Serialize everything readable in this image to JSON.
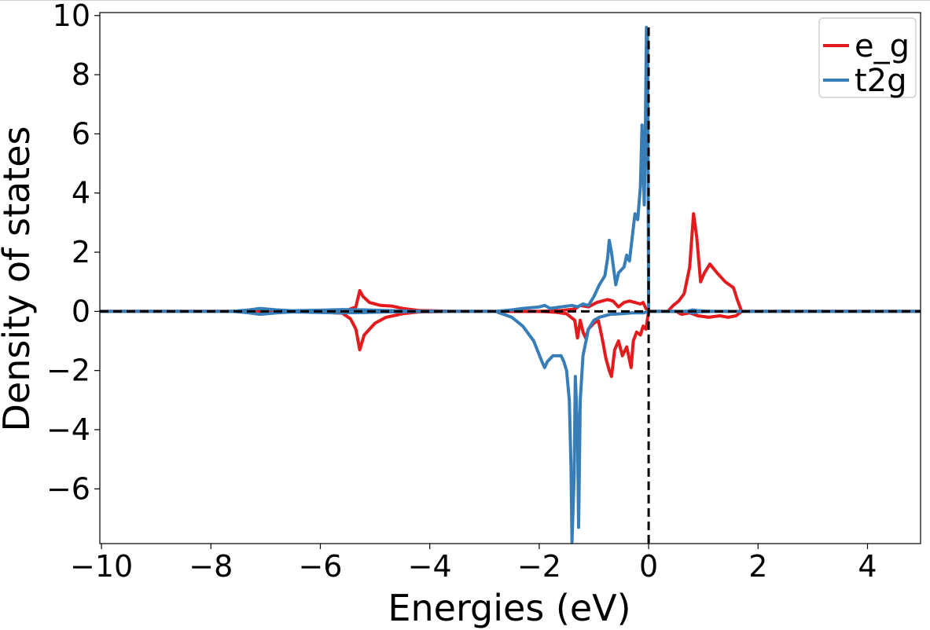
{
  "chart_data": {
    "type": "line",
    "xlabel": "Energies (eV)",
    "ylabel": "Density of states",
    "xlim": [
      -10.03,
      4.97
    ],
    "ylim": [
      -7.85,
      10.1
    ],
    "xticks": [
      -10,
      -8,
      -6,
      -4,
      -2,
      0,
      2,
      4
    ],
    "yticks": [
      -6,
      -4,
      -2,
      0,
      2,
      4,
      6,
      8,
      10
    ],
    "grid": false,
    "legend": "top-right",
    "fermi_level": 0,
    "series": [
      {
        "name": "e_g",
        "color": "#e41a1c",
        "up": [
          [
            -10.05,
            0
          ],
          [
            -7.6,
            0
          ],
          [
            -7.2,
            0.03
          ],
          [
            -7.0,
            0.02
          ],
          [
            -6.5,
            0
          ],
          [
            -6,
            0.02
          ],
          [
            -5.5,
            0.05
          ],
          [
            -5.35,
            0.15
          ],
          [
            -5.28,
            0.7
          ],
          [
            -5.22,
            0.5
          ],
          [
            -5.1,
            0.3
          ],
          [
            -4.9,
            0.2
          ],
          [
            -4.7,
            0.18
          ],
          [
            -4.5,
            0.1
          ],
          [
            -4.2,
            0.03
          ],
          [
            -3.5,
            0
          ],
          [
            -3.0,
            0
          ],
          [
            -2.5,
            0
          ],
          [
            -2.0,
            0
          ],
          [
            -1.6,
            0.03
          ],
          [
            -1.35,
            0.08
          ],
          [
            -1.25,
            0.2
          ],
          [
            -1.1,
            0.15
          ],
          [
            -0.95,
            0.3
          ],
          [
            -0.85,
            0.35
          ],
          [
            -0.75,
            0.4
          ],
          [
            -0.65,
            0.35
          ],
          [
            -0.55,
            0.15
          ],
          [
            -0.45,
            0.3
          ],
          [
            -0.35,
            0.35
          ],
          [
            -0.25,
            0.3
          ],
          [
            -0.15,
            0.25
          ],
          [
            -0.1,
            0.3
          ],
          [
            -0.05,
            0.1
          ],
          [
            0.0,
            0.0
          ],
          [
            0.35,
            0.0
          ],
          [
            0.45,
            0.2
          ],
          [
            0.55,
            0.35
          ],
          [
            0.65,
            0.6
          ],
          [
            0.75,
            1.5
          ],
          [
            0.82,
            3.3
          ],
          [
            0.88,
            2.5
          ],
          [
            0.95,
            1.0
          ],
          [
            1.02,
            1.3
          ],
          [
            1.12,
            1.6
          ],
          [
            1.25,
            1.3
          ],
          [
            1.4,
            1.0
          ],
          [
            1.55,
            0.8
          ],
          [
            1.62,
            0.4
          ],
          [
            1.7,
            0.0
          ],
          [
            5.0,
            0.0
          ]
        ],
        "down": [
          [
            -10.05,
            0
          ],
          [
            -7.6,
            0
          ],
          [
            -7.2,
            -0.03
          ],
          [
            -7.0,
            -0.02
          ],
          [
            -6.5,
            0
          ],
          [
            -6,
            -0.03
          ],
          [
            -5.6,
            -0.06
          ],
          [
            -5.45,
            -0.25
          ],
          [
            -5.35,
            -0.6
          ],
          [
            -5.28,
            -1.3
          ],
          [
            -5.2,
            -0.8
          ],
          [
            -5.0,
            -0.4
          ],
          [
            -4.8,
            -0.2
          ],
          [
            -4.5,
            -0.08
          ],
          [
            -4.2,
            -0.02
          ],
          [
            -3.5,
            0
          ],
          [
            -3.0,
            0
          ],
          [
            -2.5,
            0
          ],
          [
            -2.0,
            0
          ],
          [
            -1.7,
            -0.03
          ],
          [
            -1.5,
            -0.08
          ],
          [
            -1.35,
            -0.3
          ],
          [
            -1.3,
            -0.9
          ],
          [
            -1.25,
            -0.3
          ],
          [
            -1.2,
            -0.7
          ],
          [
            -1.15,
            -0.9
          ],
          [
            -1.1,
            -0.6
          ],
          [
            -1.0,
            -0.4
          ],
          [
            -0.92,
            -0.3
          ],
          [
            -0.85,
            -0.9
          ],
          [
            -0.78,
            -1.6
          ],
          [
            -0.72,
            -2.0
          ],
          [
            -0.68,
            -2.2
          ],
          [
            -0.62,
            -1.3
          ],
          [
            -0.55,
            -1.0
          ],
          [
            -0.48,
            -1.5
          ],
          [
            -0.4,
            -1.2
          ],
          [
            -0.32,
            -1.9
          ],
          [
            -0.28,
            -1.0
          ],
          [
            -0.22,
            -0.7
          ],
          [
            -0.15,
            -0.8
          ],
          [
            -0.1,
            -0.5
          ],
          [
            -0.05,
            -0.6
          ],
          [
            0.0,
            0.0
          ],
          [
            0.5,
            0.0
          ],
          [
            0.6,
            -0.1
          ],
          [
            0.75,
            -0.05
          ],
          [
            0.9,
            -0.15
          ],
          [
            1.1,
            -0.2
          ],
          [
            1.3,
            -0.15
          ],
          [
            1.45,
            -0.2
          ],
          [
            1.6,
            -0.15
          ],
          [
            1.7,
            0.0
          ],
          [
            5.0,
            0.0
          ]
        ]
      },
      {
        "name": "t2g",
        "color": "#377eb8",
        "up": [
          [
            -10.05,
            0
          ],
          [
            -7.6,
            0
          ],
          [
            -7.3,
            0.05
          ],
          [
            -7.1,
            0.1
          ],
          [
            -6.8,
            0.05
          ],
          [
            -6.5,
            0.02
          ],
          [
            -6.0,
            0.04
          ],
          [
            -5.6,
            0.06
          ],
          [
            -5.2,
            0.05
          ],
          [
            -4.8,
            0.03
          ],
          [
            -4.4,
            0.01
          ],
          [
            -3.5,
            0
          ],
          [
            -2.8,
            0
          ],
          [
            -2.5,
            0.05
          ],
          [
            -2.3,
            0.1
          ],
          [
            -2.0,
            0.15
          ],
          [
            -1.9,
            0.2
          ],
          [
            -1.8,
            0.1
          ],
          [
            -1.6,
            0.15
          ],
          [
            -1.4,
            0.2
          ],
          [
            -1.3,
            0.15
          ],
          [
            -1.2,
            0.25
          ],
          [
            -1.1,
            0.2
          ],
          [
            -1.0,
            0.5
          ],
          [
            -0.9,
            0.9
          ],
          [
            -0.8,
            1.2
          ],
          [
            -0.75,
            1.8
          ],
          [
            -0.72,
            2.4
          ],
          [
            -0.68,
            2.0
          ],
          [
            -0.6,
            0.9
          ],
          [
            -0.55,
            1.3
          ],
          [
            -0.45,
            1.5
          ],
          [
            -0.4,
            1.9
          ],
          [
            -0.35,
            1.7
          ],
          [
            -0.3,
            2.5
          ],
          [
            -0.25,
            3.3
          ],
          [
            -0.2,
            3.1
          ],
          [
            -0.15,
            4.2
          ],
          [
            -0.12,
            6.3
          ],
          [
            -0.1,
            5.0
          ],
          [
            -0.08,
            3.6
          ],
          [
            -0.06,
            6.0
          ],
          [
            -0.04,
            9.6
          ],
          [
            -0.02,
            9.4
          ],
          [
            0.0,
            0.0
          ],
          [
            0.7,
            0.0
          ],
          [
            0.8,
            0.05
          ],
          [
            0.9,
            0.02
          ],
          [
            1.2,
            0.0
          ],
          [
            5.0,
            0.0
          ]
        ],
        "down": [
          [
            -10.05,
            0
          ],
          [
            -7.6,
            0
          ],
          [
            -7.3,
            -0.05
          ],
          [
            -7.1,
            -0.1
          ],
          [
            -6.8,
            -0.05
          ],
          [
            -6.5,
            -0.02
          ],
          [
            -6.0,
            -0.04
          ],
          [
            -5.6,
            -0.05
          ],
          [
            -5.2,
            -0.04
          ],
          [
            -4.8,
            -0.02
          ],
          [
            -4.4,
            -0.01
          ],
          [
            -3.5,
            0
          ],
          [
            -2.8,
            0
          ],
          [
            -2.5,
            -0.2
          ],
          [
            -2.3,
            -0.5
          ],
          [
            -2.1,
            -1.0
          ],
          [
            -1.95,
            -1.7
          ],
          [
            -1.9,
            -1.9
          ],
          [
            -1.85,
            -1.7
          ],
          [
            -1.8,
            -1.6
          ],
          [
            -1.75,
            -1.5
          ],
          [
            -1.7,
            -1.5
          ],
          [
            -1.6,
            -1.5
          ],
          [
            -1.55,
            -1.7
          ],
          [
            -1.5,
            -2.0
          ],
          [
            -1.45,
            -3.0
          ],
          [
            -1.42,
            -5.2
          ],
          [
            -1.4,
            -7.8
          ],
          [
            -1.36,
            -5.5
          ],
          [
            -1.34,
            -2.2
          ],
          [
            -1.3,
            -4.0
          ],
          [
            -1.28,
            -7.3
          ],
          [
            -1.25,
            -3.0
          ],
          [
            -1.2,
            -1.5
          ],
          [
            -1.1,
            -0.6
          ],
          [
            -1.0,
            -0.3
          ],
          [
            -0.9,
            -0.2
          ],
          [
            -0.7,
            -0.1
          ],
          [
            -0.5,
            -0.08
          ],
          [
            -0.3,
            -0.05
          ],
          [
            -0.1,
            -0.05
          ],
          [
            0.0,
            0.0
          ],
          [
            0.7,
            0.0
          ],
          [
            0.8,
            -0.05
          ],
          [
            0.9,
            -0.02
          ],
          [
            1.2,
            0.0
          ],
          [
            5.0,
            0.0
          ]
        ]
      }
    ]
  }
}
